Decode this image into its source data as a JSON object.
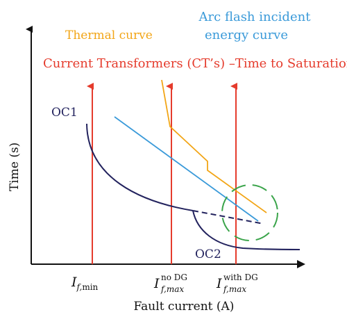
{
  "labels": {
    "arc_flash_line1": "Arc flash incident",
    "arc_flash_line2": "energy curve",
    "thermal": "Thermal curve",
    "ct_saturation": "Current Transformers (CT’s) –Time to Saturation",
    "oc1": "OC1",
    "oc2": "OC2"
  },
  "axes": {
    "y_title": "Time (s)",
    "x_title": "Fault current (A)"
  },
  "ticks": [
    {
      "main": "I",
      "sub": "f,",
      "sub2": "min",
      "sup": ""
    },
    {
      "main": "I",
      "sub": "f,max",
      "sub2": "",
      "sup": "no DG"
    },
    {
      "main": "I",
      "sub": "f,max",
      "sub2": "",
      "sup": "with DG"
    }
  ],
  "colors": {
    "arc_flash": "#3a9ad9",
    "thermal": "#f2a516",
    "ct": "#e53b2c",
    "oc": "#23235e",
    "circle": "#3aa44a",
    "axis": "#111111"
  }
}
